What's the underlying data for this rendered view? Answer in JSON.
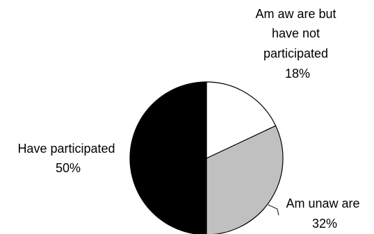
{
  "chart_data": {
    "type": "pie",
    "title": "",
    "slices": [
      {
        "name": "Am aw are but have not participated",
        "label_lines": [
          "Am aw are but",
          "have not",
          "participated"
        ],
        "value": 18,
        "value_label": "18%",
        "color": "#ffffff"
      },
      {
        "name": "Am unaw are",
        "label_lines": [
          "Am unaw are"
        ],
        "value": 32,
        "value_label": "32%",
        "color": "#c0c0c0"
      },
      {
        "name": "Have participated",
        "label_lines": [
          "Have participated"
        ],
        "value": 50,
        "value_label": "50%",
        "color": "#000000"
      }
    ],
    "start_angle": "12 o'clock",
    "direction": "clockwise",
    "legend": "none",
    "outline_color": "#000000"
  }
}
